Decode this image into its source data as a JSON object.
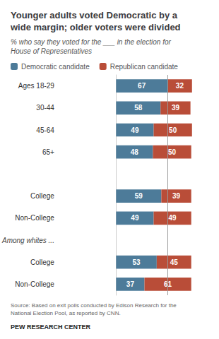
{
  "chart_data": {
    "type": "bar",
    "orientation": "horizontal",
    "stacked": true,
    "title": "Younger adults voted Democratic by a\nwide margin; older voters were divided",
    "subtitle": "% who say they voted for the ___ in the election for\nHouse of Representatives",
    "categories": [
      "Ages 18-29",
      "30-44",
      "45-64",
      "65+",
      "College",
      "Non-College",
      "College",
      "Non-College"
    ],
    "series": [
      {
        "name": "Democratic candidate",
        "color": "#4d7b99",
        "values": [
          67,
          58,
          49,
          48,
          59,
          49,
          53,
          37
        ]
      },
      {
        "name": "Republican candidate",
        "color": "#b94d38",
        "values": [
          32,
          39,
          50,
          50,
          39,
          49,
          45,
          61
        ]
      }
    ],
    "annotations": [
      {
        "text": "Among whites ..."
      }
    ],
    "reference_line": {
      "x": 67,
      "color": "#999999"
    },
    "source": "Source: Based on exit polls conducted by Edison Research for the\nNational Election Pool, as reported by CNN.",
    "footer": "PEW RESEARCH CENTER",
    "xlim": [
      -75,
      125
    ],
    "data_labels": true,
    "tick_labels": "y",
    "grid": false,
    "legend": "top"
  }
}
